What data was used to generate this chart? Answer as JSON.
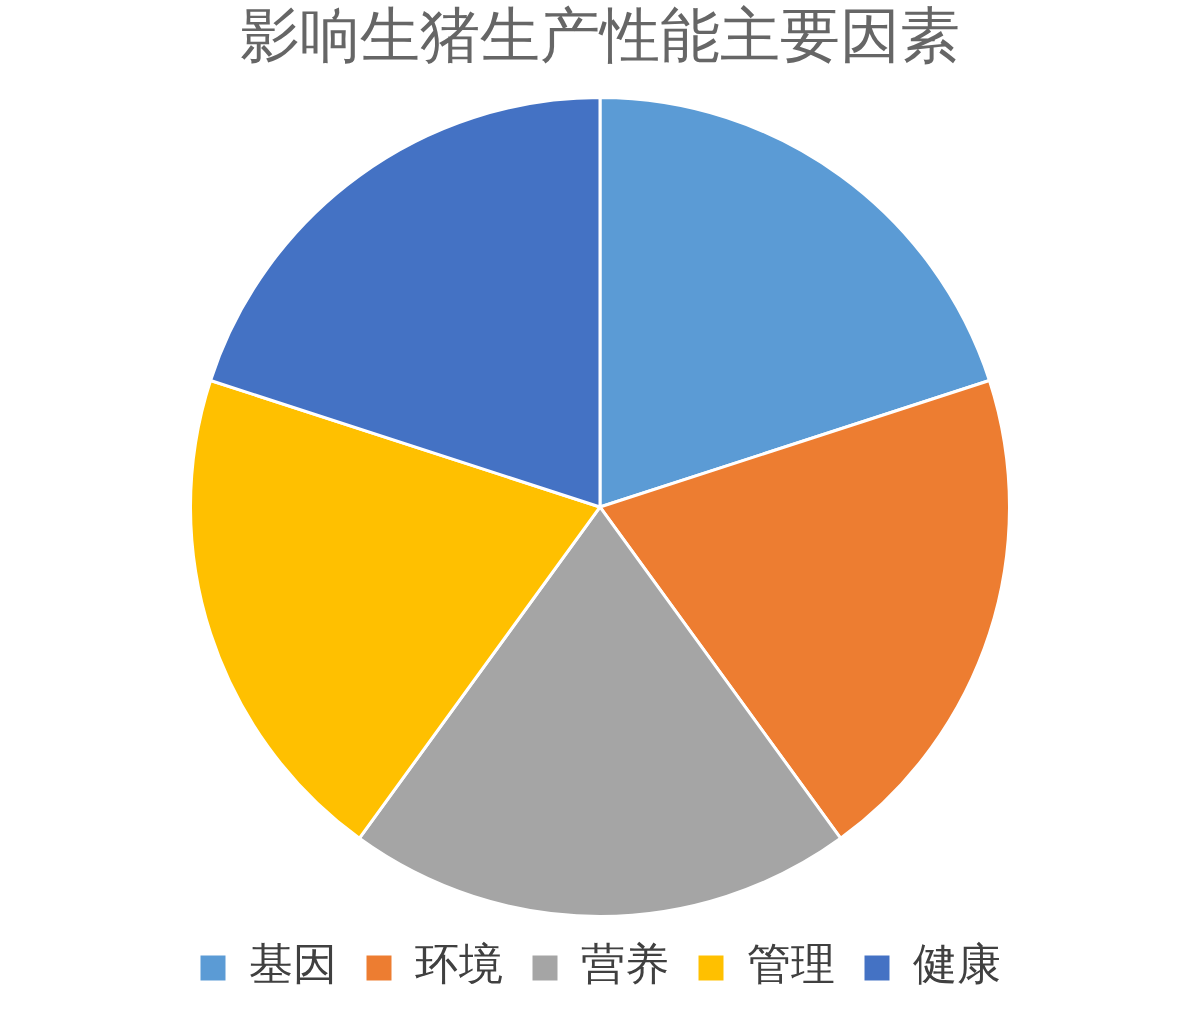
{
  "chart_data": {
    "type": "pie",
    "title": "影响生猪生产性能主要因素",
    "categories": [
      "基因",
      "环境",
      "营养",
      "管理",
      "健康"
    ],
    "values": [
      20,
      20,
      20,
      20,
      20
    ],
    "colors": [
      "#5b9bd5",
      "#ed7d31",
      "#a5a5a5",
      "#ffc000",
      "#4472c4"
    ],
    "legend": "bottom"
  }
}
